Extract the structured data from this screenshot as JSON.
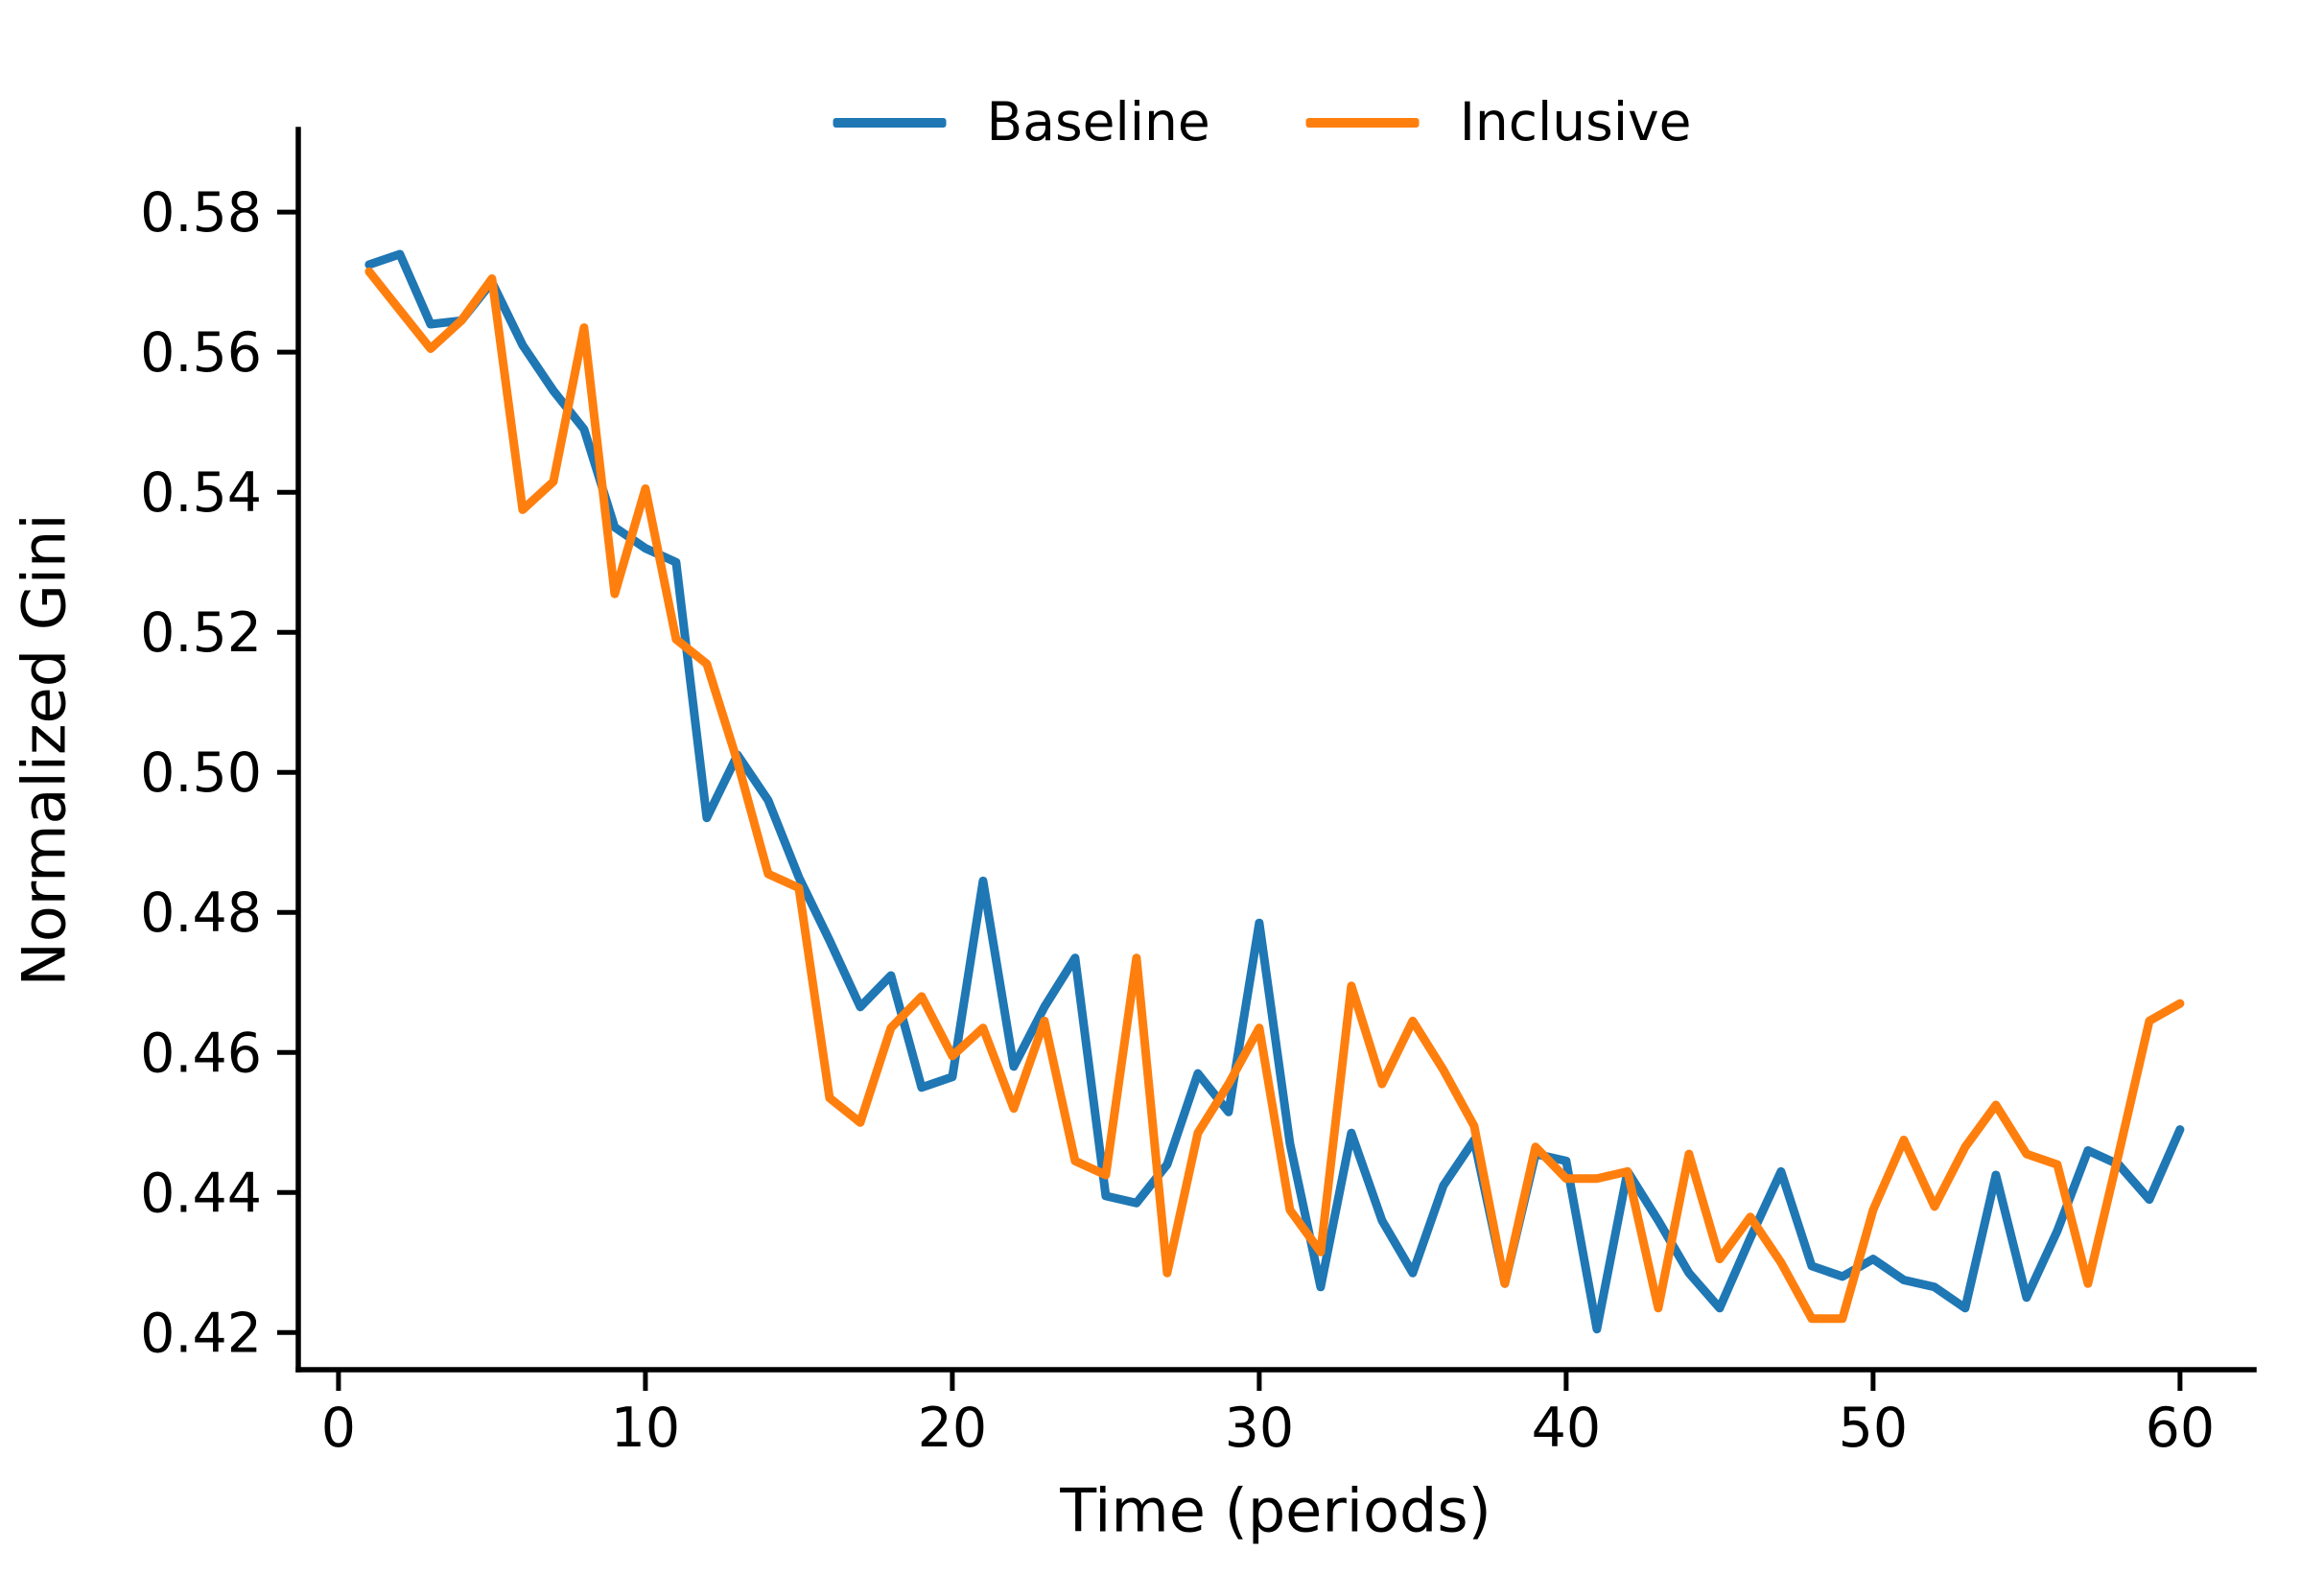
{
  "chart_data": {
    "type": "line",
    "title": "",
    "xlabel": "Time (periods)",
    "ylabel": "Normalized Gini",
    "grid": false,
    "legend_position": "upper center, outside axes, horizontal",
    "xlim": [
      -1.31,
      62.41
    ],
    "ylim": [
      0.4147,
      0.5918
    ],
    "xticks": [
      0,
      10,
      20,
      30,
      40,
      50,
      60
    ],
    "yticks": [
      0.42,
      0.44,
      0.46,
      0.48,
      0.5,
      0.52,
      0.54,
      0.56,
      0.58
    ],
    "x": [
      1,
      2,
      3,
      4,
      5,
      6,
      7,
      8,
      9,
      10,
      11,
      12,
      13,
      14,
      15,
      16,
      17,
      18,
      19,
      20,
      21,
      22,
      23,
      24,
      25,
      26,
      27,
      28,
      29,
      30,
      31,
      32,
      33,
      34,
      35,
      36,
      37,
      38,
      39,
      40,
      41,
      42,
      43,
      44,
      45,
      46,
      47,
      48,
      49,
      50,
      51,
      52,
      53,
      54,
      55,
      56,
      57,
      58,
      59,
      60
    ],
    "series": [
      {
        "name": "Baseline",
        "color": "#1f77b4",
        "values": [
          0.5725,
          0.574,
          0.564,
          0.5645,
          0.57,
          0.561,
          0.5545,
          0.549,
          0.535,
          0.532,
          0.53,
          0.4935,
          0.5025,
          0.496,
          0.485,
          0.476,
          0.4665,
          0.471,
          0.455,
          0.4565,
          0.4845,
          0.458,
          0.4665,
          0.4735,
          0.4395,
          0.4385,
          0.444,
          0.457,
          0.4515,
          0.4785,
          0.447,
          0.4265,
          0.4485,
          0.436,
          0.4285,
          0.441,
          0.4475,
          0.427,
          0.4455,
          0.4445,
          0.4205,
          0.443,
          0.436,
          0.4285,
          0.4235,
          0.4335,
          0.443,
          0.4295,
          0.428,
          0.4305,
          0.4275,
          0.4265,
          0.4235,
          0.4425,
          0.425,
          0.4345,
          0.446,
          0.444,
          0.439,
          0.449
        ]
      },
      {
        "name": "Inclusive",
        "color": "#ff7f0e",
        "values": [
          0.5715,
          0.566,
          0.5605,
          0.5645,
          0.5705,
          0.5375,
          0.5415,
          0.5635,
          0.5255,
          0.5405,
          0.519,
          0.5155,
          0.5015,
          0.4855,
          0.4835,
          0.4535,
          0.45,
          0.4635,
          0.468,
          0.4595,
          0.4635,
          0.452,
          0.4645,
          0.4445,
          0.4425,
          0.4735,
          0.4285,
          0.4485,
          0.4555,
          0.4635,
          0.4375,
          0.4315,
          0.4695,
          0.4555,
          0.4645,
          0.4575,
          0.4495,
          0.427,
          0.4465,
          0.442,
          0.442,
          0.443,
          0.4235,
          0.4455,
          0.4305,
          0.4365,
          0.43,
          0.422,
          0.422,
          0.4375,
          0.4475,
          0.438,
          0.4465,
          0.4525,
          0.4455,
          0.444,
          0.427,
          0.4455,
          0.4645,
          0.467
        ]
      }
    ]
  },
  "legend": {
    "items": [
      {
        "label": "Baseline"
      },
      {
        "label": "Inclusive"
      }
    ]
  }
}
